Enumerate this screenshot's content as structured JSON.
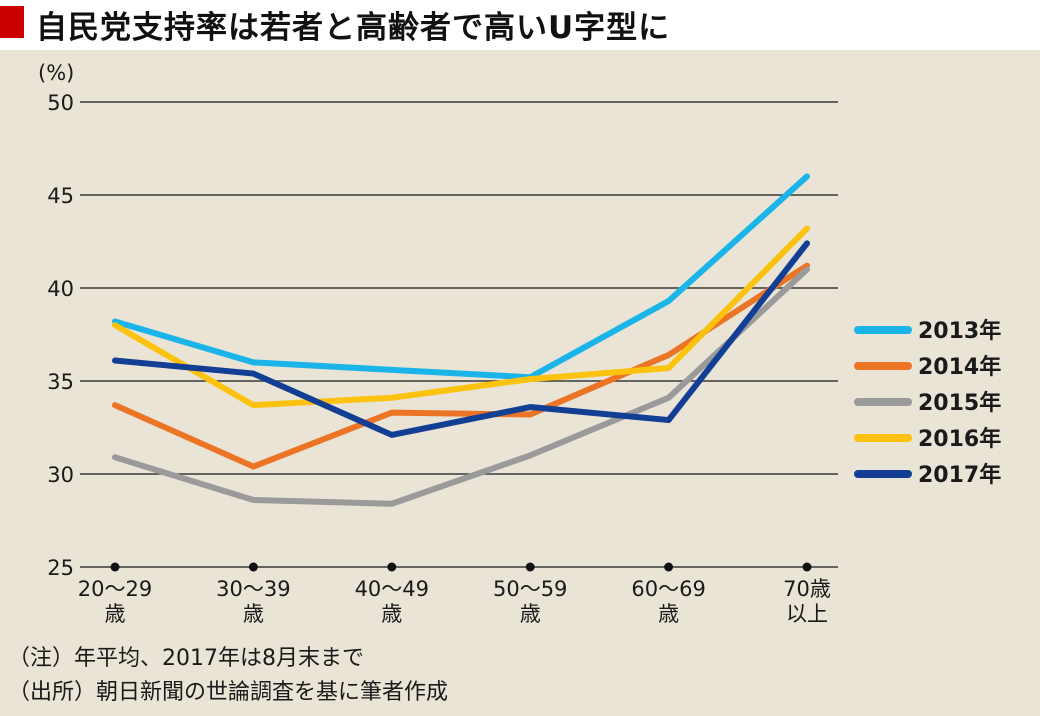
{
  "title": "自民党支持率は若者と高齢者で高いU字型に",
  "colors": {
    "title_mark": "#cc0000",
    "panel": "#e9e4d5",
    "grid": "#3a3a3a"
  },
  "notes": {
    "note": "（注）年平均、2017年は8月末まで",
    "source": "（出所）朝日新聞の世論調査を基に筆者作成"
  },
  "chart_data": {
    "type": "line",
    "title": "自民党支持率は若者と高齢者で高いU字型に",
    "ylabel": "(%)",
    "xlabel": "",
    "ylim": [
      25,
      50
    ],
    "yticks": [
      25,
      30,
      35,
      40,
      45,
      50
    ],
    "categories": [
      [
        "20〜29",
        "歳"
      ],
      [
        "30〜39",
        "歳"
      ],
      [
        "40〜49",
        "歳"
      ],
      [
        "50〜59",
        "歳"
      ],
      [
        "60〜69",
        "歳"
      ],
      [
        "70歳",
        "以上"
      ]
    ],
    "legend_position": "right",
    "series": [
      {
        "name": "2013年",
        "color": "#1ab4e8",
        "values": [
          38.2,
          36.0,
          35.6,
          35.2,
          39.3,
          46.0
        ]
      },
      {
        "name": "2014年",
        "color": "#ec7425",
        "values": [
          33.7,
          30.4,
          33.3,
          33.2,
          36.4,
          41.2
        ]
      },
      {
        "name": "2015年",
        "color": "#9a9a9a",
        "values": [
          30.9,
          28.6,
          28.4,
          31.0,
          34.1,
          41.0
        ]
      },
      {
        "name": "2016年",
        "color": "#fcc20e",
        "values": [
          38.0,
          33.7,
          34.1,
          35.1,
          35.7,
          43.2
        ]
      },
      {
        "name": "2017年",
        "color": "#123f94",
        "values": [
          36.1,
          35.4,
          32.1,
          33.6,
          32.9,
          42.4
        ]
      }
    ]
  }
}
